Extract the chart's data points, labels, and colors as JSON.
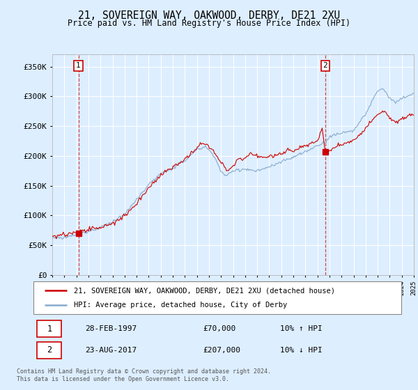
{
  "title": "21, SOVEREIGN WAY, OAKWOOD, DERBY, DE21 2XU",
  "subtitle": "Price paid vs. HM Land Registry's House Price Index (HPI)",
  "legend_line1": "21, SOVEREIGN WAY, OAKWOOD, DERBY, DE21 2XU (detached house)",
  "legend_line2": "HPI: Average price, detached house, City of Derby",
  "annotation1_date": "28-FEB-1997",
  "annotation1_price": "£70,000",
  "annotation1_hpi": "10% ↑ HPI",
  "annotation2_date": "23-AUG-2017",
  "annotation2_price": "£207,000",
  "annotation2_hpi": "10% ↓ HPI",
  "footer": "Contains HM Land Registry data © Crown copyright and database right 2024.\nThis data is licensed under the Open Government Licence v3.0.",
  "red_line_color": "#cc0000",
  "blue_line_color": "#88aacc",
  "background_color": "#ddeeff",
  "plot_bg_color": "#ddeeff",
  "grid_color": "#ffffff",
  "dashed_line_color": "#cc0000",
  "ylim": [
    0,
    370000
  ],
  "yticks": [
    0,
    50000,
    100000,
    150000,
    200000,
    250000,
    300000,
    350000
  ],
  "x_start_year": 1995,
  "x_end_year": 2025,
  "sale1_year": 1997.17,
  "sale1_price": 70000,
  "sale2_year": 2017.65,
  "sale2_price": 207000
}
